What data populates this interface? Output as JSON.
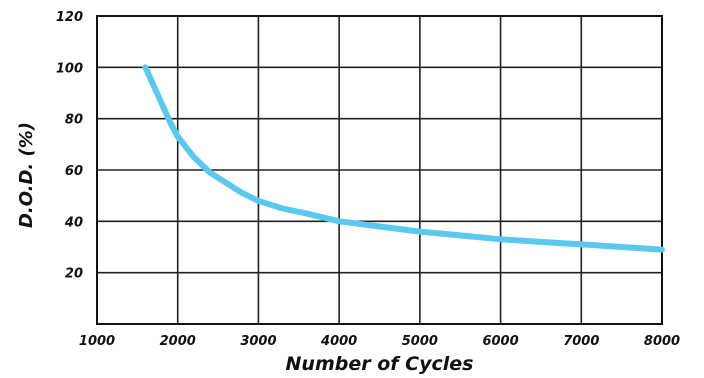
{
  "chart_data": {
    "type": "line",
    "title": "",
    "xlabel": "Number of Cycles",
    "ylabel": "D.O.D. (%)",
    "xlim": [
      1000,
      8000
    ],
    "ylim": [
      0,
      120
    ],
    "x_ticks": [
      "1000",
      "2000",
      "3000",
      "4000",
      "5000",
      "6000",
      "7000",
      "8000"
    ],
    "y_ticks": [
      "20",
      "40",
      "60",
      "80",
      "100",
      "120"
    ],
    "grid": true,
    "line_color": "#5bc8f0",
    "series": [
      {
        "x": [
          1600,
          1700,
          1800,
          1900,
          2000,
          2200,
          2400,
          2600,
          2800,
          3000,
          3300,
          3600,
          4000,
          4500,
          5000,
          5500,
          6000,
          6500,
          7000,
          7500,
          8000
        ],
        "values": [
          100,
          93,
          86,
          79,
          73,
          65,
          59,
          55,
          51,
          48,
          45,
          43,
          40,
          38,
          36,
          34.5,
          33,
          32,
          31,
          30,
          29
        ]
      }
    ]
  }
}
